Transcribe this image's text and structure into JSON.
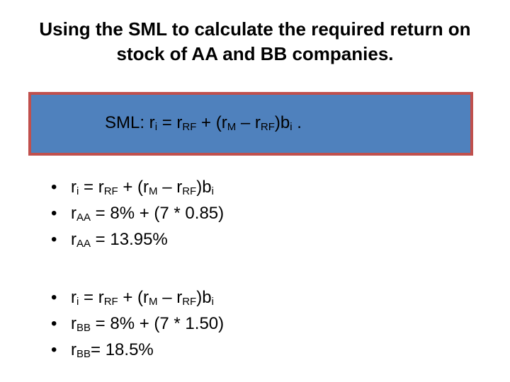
{
  "title": {
    "lines": [
      "Using the SML to calculate the required return on",
      "stock of AA and BB companies."
    ]
  },
  "formula_box": {
    "parts": [
      "SML:  r",
      {
        "sub": "i"
      },
      " = r",
      {
        "sub": "RF"
      },
      " + (r",
      {
        "sub": "M"
      },
      " – r",
      {
        "sub": "RF"
      },
      ")b",
      {
        "sub": "i"
      },
      " ."
    ]
  },
  "bullet_groups": [
    {
      "items": [
        {
          "parts": [
            "r",
            {
              "sub": "i"
            },
            " = r",
            {
              "sub": "RF"
            },
            " + (r",
            {
              "sub": "M"
            },
            " – r",
            {
              "sub": "RF"
            },
            ")b",
            {
              "sub": "i"
            }
          ]
        },
        {
          "parts": [
            "r",
            {
              "sub": "AA"
            },
            " = 8% + (7 * 0.85)"
          ]
        },
        {
          "parts": [
            "r",
            {
              "sub": "AA"
            },
            " = 13.95%"
          ]
        }
      ]
    },
    {
      "items": [
        {
          "parts": [
            "r",
            {
              "sub": "i"
            },
            " = r",
            {
              "sub": "RF"
            },
            " + (r",
            {
              "sub": "M"
            },
            " – r",
            {
              "sub": "RF"
            },
            ")b",
            {
              "sub": "i"
            }
          ]
        },
        {
          "parts": [
            "r",
            {
              "sub": "BB"
            },
            " = 8% + (7 * 1.50)"
          ]
        },
        {
          "parts": [
            "r",
            {
              "sub": "BB"
            },
            "= 18.5%"
          ]
        }
      ]
    }
  ]
}
